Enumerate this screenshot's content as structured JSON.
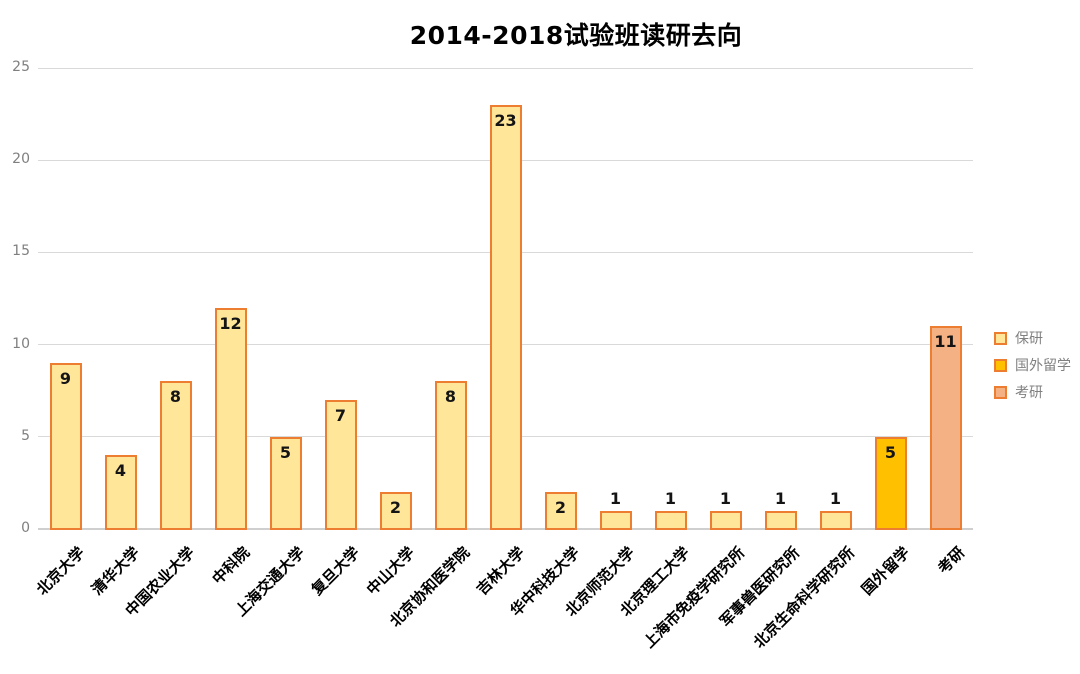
{
  "chart_data": {
    "type": "bar",
    "title": "2014-2018试验班读研去向",
    "categories": [
      "北京大学",
      "清华大学",
      "中国农业大学",
      "中科院",
      "上海交通大学",
      "复旦大学",
      "中山大学",
      "北京协和医学院",
      "吉林大学",
      "华中科技大学",
      "北京师范大学",
      "北京理工大学",
      "上海市免疫学研究所",
      "军事兽医研究所",
      "北京生命科学研究所",
      "国外留学",
      "考研"
    ],
    "values": [
      9,
      4,
      8,
      12,
      5,
      7,
      2,
      8,
      23,
      2,
      1,
      1,
      1,
      1,
      1,
      5,
      11
    ],
    "point_series": [
      "保研",
      "保研",
      "保研",
      "保研",
      "保研",
      "保研",
      "保研",
      "保研",
      "保研",
      "保研",
      "保研",
      "保研",
      "保研",
      "保研",
      "保研",
      "国外留学",
      "考研"
    ],
    "y_ticks": [
      0,
      5,
      10,
      15,
      20,
      25
    ],
    "ylim": [
      0,
      25
    ],
    "grid": true,
    "data_labels": true,
    "xlabel": "",
    "ylabel": "",
    "legend_position": "right",
    "legend": [
      {
        "label": "保研",
        "fill": "#FFE699",
        "border": "#ED7D31"
      },
      {
        "label": "国外留学",
        "fill": "#FFC000",
        "border": "#ED7D31"
      },
      {
        "label": "考研",
        "fill": "#F4B183",
        "border": "#ED7D31"
      }
    ]
  },
  "colors": {
    "background": "#FFFFFF",
    "gridline": "#D9D9D9",
    "axis_text": "#7F7F7F",
    "value_label_text": "#141414",
    "category_label_text": "#000000",
    "legend_text": "#808080"
  }
}
